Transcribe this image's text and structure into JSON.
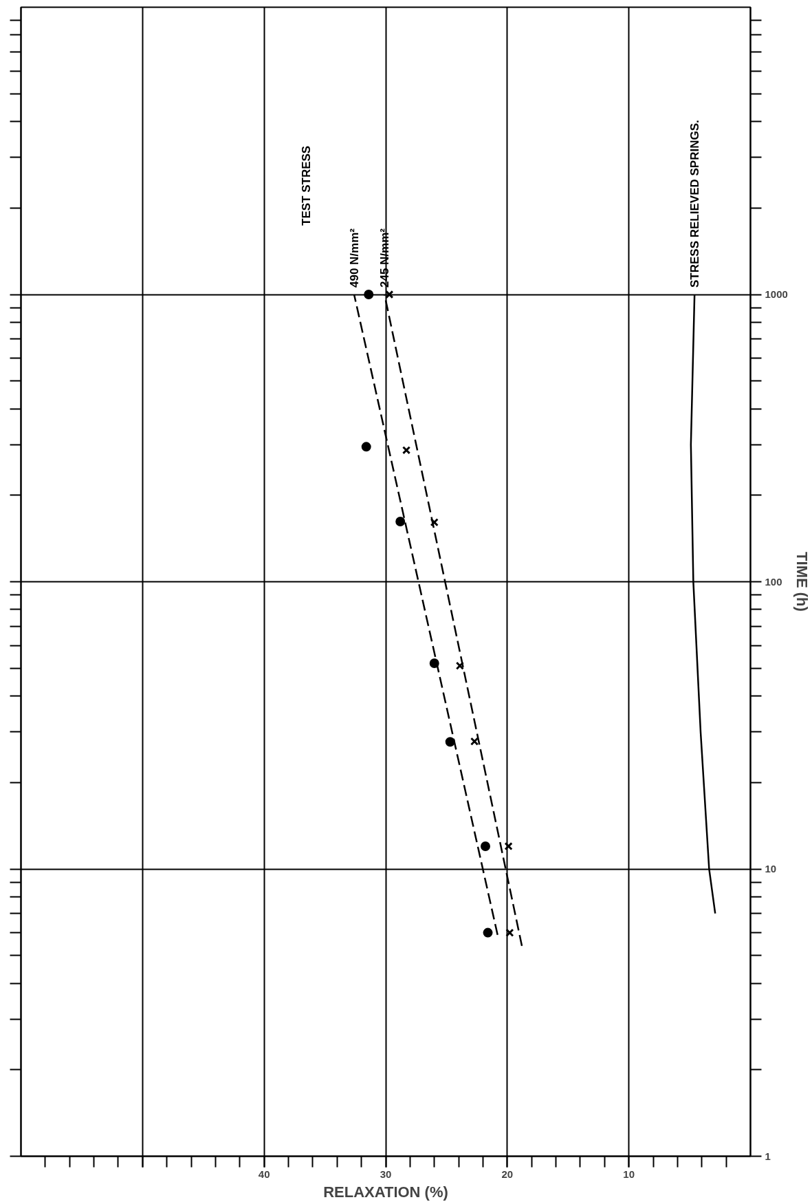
{
  "chart_data": {
    "type": "scatter",
    "xlabel": "RELAXATION (%)",
    "ylabel": "TIME (h)",
    "log": "y",
    "xlim": [
      60,
      0
    ],
    "xticks": [
      10,
      20,
      30,
      40,
      {
        "value": 50,
        "label": null
      }
    ],
    "ylim": [
      1,
      10000
    ],
    "yticks": [
      1,
      10,
      100,
      1000
    ],
    "grid": true,
    "annotations": [
      "TEST STRESS"
    ],
    "series": [
      {
        "marker": "circle",
        "color": "#000000",
        "x": [
          21.6,
          21.8,
          24.7,
          26.0,
          28.8,
          31.6,
          31.4
        ],
        "values": [
          6,
          12,
          27.7,
          52,
          162,
          295,
          1000
        ]
      },
      {
        "marker": "cross",
        "color": "#000000",
        "x": [
          19.8,
          19.9,
          22.7,
          23.9,
          26.0,
          28.3,
          29.7
        ],
        "values": [
          6,
          12,
          27.8,
          51,
          161,
          287,
          1000
        ]
      },
      {
        "type": "line",
        "name": "490 N/mm²",
        "line_style": "dashed",
        "color": "#000000",
        "x": [
          20.8,
          32.6
        ],
        "values": [
          5.9,
          1000
        ]
      },
      {
        "type": "line",
        "name": "245 N/mm²",
        "line_style": "dashed",
        "color": "#000000",
        "x": [
          18.8,
          30.1
        ],
        "values": [
          5.4,
          1000
        ]
      },
      {
        "type": "line",
        "name": "STRESS RELIEVED SPRINGS.",
        "line_style": "solid",
        "color": "#000000",
        "x": [
          2.9,
          3.4,
          4.1,
          4.7,
          4.9,
          4.6
        ],
        "values": [
          7,
          10,
          30,
          100,
          300,
          1000
        ]
      }
    ]
  }
}
